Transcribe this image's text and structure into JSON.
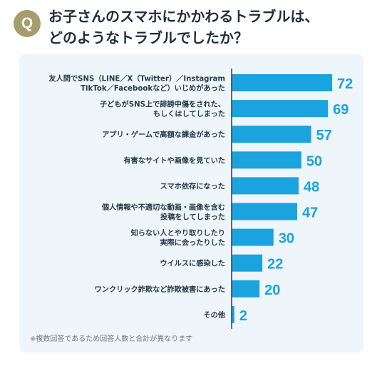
{
  "header": {
    "badge": "Q",
    "title_line1": "お子さんのスマホにかかわるトラブルは、",
    "title_line2": "どのようなトラブルでしたか？"
  },
  "colors": {
    "bar": "#1aa3de",
    "value": "#1aa3de",
    "badge": "#a79c6b",
    "panel": "#eef6fb",
    "axis": "#2b3a4a"
  },
  "chart_data": {
    "type": "bar",
    "orientation": "horizontal",
    "categories": [
      [
        "友人間でSNS（LINE／X（Twitter）／Instagram",
        "TikTok／Facebookなど）いじめがあった"
      ],
      [
        "子どもがSNS上で誹謗中傷をされた、",
        "もしくはしてしまった"
      ],
      [
        "アプリ・ゲームで高額な課金があった"
      ],
      [
        "有害なサイトや画像を見ていた"
      ],
      [
        "スマホ依存になった"
      ],
      [
        "個人情報や不適切な動画・画像を含む",
        "投稿をしてしまった"
      ],
      [
        "知らない人とやり取りしたり",
        "実際に会ったりした"
      ],
      [
        "ウイルスに感染した"
      ],
      [
        "ワンクリック詐欺など詐欺被害にあった"
      ],
      [
        "その他"
      ]
    ],
    "values": [
      72,
      69,
      57,
      50,
      48,
      47,
      30,
      22,
      20,
      2
    ],
    "xlim": [
      0,
      72
    ],
    "grid": false,
    "legend": "none"
  },
  "footnote": "※複数回答であるため回答人数と合計が異なります"
}
